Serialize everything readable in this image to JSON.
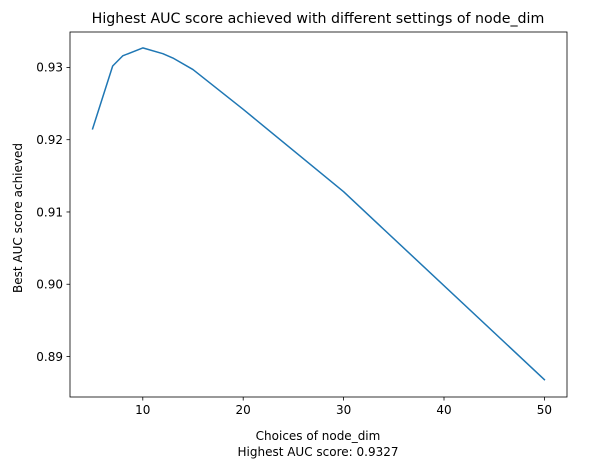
{
  "chart_data": {
    "type": "line",
    "title": "Highest AUC score achieved with different settings of node_dim",
    "xlabel": "Choices of node_dim",
    "xlabel_note": "Highest AUC score: 0.9327",
    "ylabel": "Best AUC score achieved",
    "xlim": [
      2.75,
      52.25
    ],
    "ylim": [
      0.8844,
      0.9349
    ],
    "x_ticks": [
      10,
      20,
      30,
      40,
      50
    ],
    "x_tick_labels": [
      "10",
      "20",
      "30",
      "40",
      "50"
    ],
    "y_ticks": [
      0.89,
      0.9,
      0.91,
      0.92,
      0.93
    ],
    "y_tick_labels": [
      "0.89",
      "0.90",
      "0.91",
      "0.92",
      "0.93"
    ],
    "grid": false,
    "series": [
      {
        "color": "#1f77b4",
        "x": [
          5,
          7,
          8,
          10,
          12,
          13,
          15,
          20,
          30,
          50
        ],
        "y": [
          0.9215,
          0.9302,
          0.9316,
          0.9327,
          0.9319,
          0.9313,
          0.9297,
          0.9242,
          0.9128,
          0.8868
        ]
      }
    ]
  }
}
